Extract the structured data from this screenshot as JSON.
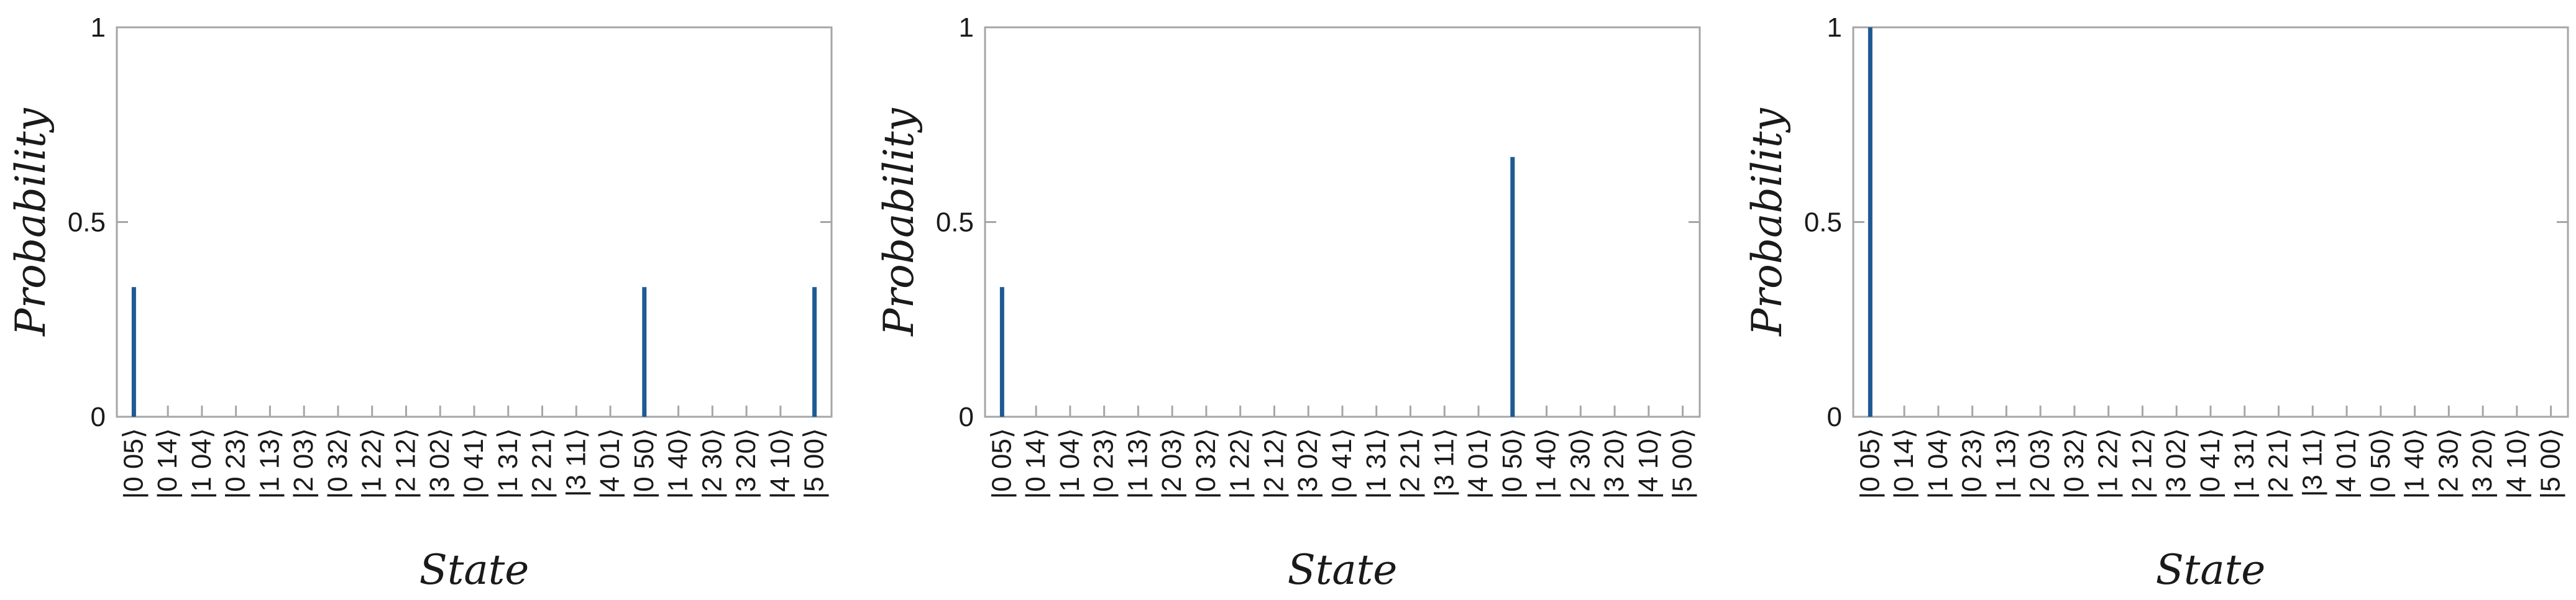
{
  "chart_data": [
    {
      "type": "bar",
      "xlabel": "State",
      "ylabel": "Probability",
      "ylim": [
        0,
        1
      ],
      "yticks": [
        "0",
        "0.5",
        "1"
      ],
      "grid": false,
      "categories": [
        "|0 05⟩",
        "|0 14⟩",
        "|1 04⟩",
        "|0 23⟩",
        "|1 13⟩",
        "|2 03⟩",
        "|0 32⟩",
        "|1 22⟩",
        "|2 12⟩",
        "|3 02⟩",
        "|0 41⟩",
        "|1 31⟩",
        "|2 21⟩",
        "|3 11⟩",
        "|4 01⟩",
        "|0 50⟩",
        "|1 40⟩",
        "|2 30⟩",
        "|3 20⟩",
        "|4 10⟩",
        "|5 00⟩"
      ],
      "values": [
        0.333,
        0,
        0,
        0,
        0,
        0,
        0,
        0,
        0,
        0,
        0,
        0,
        0,
        0,
        0,
        0.333,
        0,
        0,
        0,
        0,
        0.333
      ]
    },
    {
      "type": "bar",
      "xlabel": "State",
      "ylabel": "Probability",
      "ylim": [
        0,
        1
      ],
      "yticks": [
        "0",
        "0.5",
        "1"
      ],
      "grid": false,
      "categories": [
        "|0 05⟩",
        "|0 14⟩",
        "|1 04⟩",
        "|0 23⟩",
        "|1 13⟩",
        "|2 03⟩",
        "|0 32⟩",
        "|1 22⟩",
        "|2 12⟩",
        "|3 02⟩",
        "|0 41⟩",
        "|1 31⟩",
        "|2 21⟩",
        "|3 11⟩",
        "|4 01⟩",
        "|0 50⟩",
        "|1 40⟩",
        "|2 30⟩",
        "|3 20⟩",
        "|4 10⟩",
        "|5 00⟩"
      ],
      "values": [
        0.333,
        0,
        0,
        0,
        0,
        0,
        0,
        0,
        0,
        0,
        0,
        0,
        0,
        0,
        0,
        0.667,
        0,
        0,
        0,
        0,
        0
      ]
    },
    {
      "type": "bar",
      "xlabel": "State",
      "ylabel": "Probability",
      "ylim": [
        0,
        1
      ],
      "yticks": [
        "0",
        "0.5",
        "1"
      ],
      "grid": false,
      "categories": [
        "|0 05⟩",
        "|0 14⟩",
        "|1 04⟩",
        "|0 23⟩",
        "|1 13⟩",
        "|2 03⟩",
        "|0 32⟩",
        "|1 22⟩",
        "|2 12⟩",
        "|3 02⟩",
        "|0 41⟩",
        "|1 31⟩",
        "|2 21⟩",
        "|3 11⟩",
        "|4 01⟩",
        "|0 50⟩",
        "|1 40⟩",
        "|2 30⟩",
        "|3 20⟩",
        "|4 10⟩",
        "|5 00⟩"
      ],
      "values": [
        1,
        0,
        0,
        0,
        0,
        0,
        0,
        0,
        0,
        0,
        0,
        0,
        0,
        0,
        0,
        0,
        0,
        0,
        0,
        0,
        0
      ]
    }
  ]
}
